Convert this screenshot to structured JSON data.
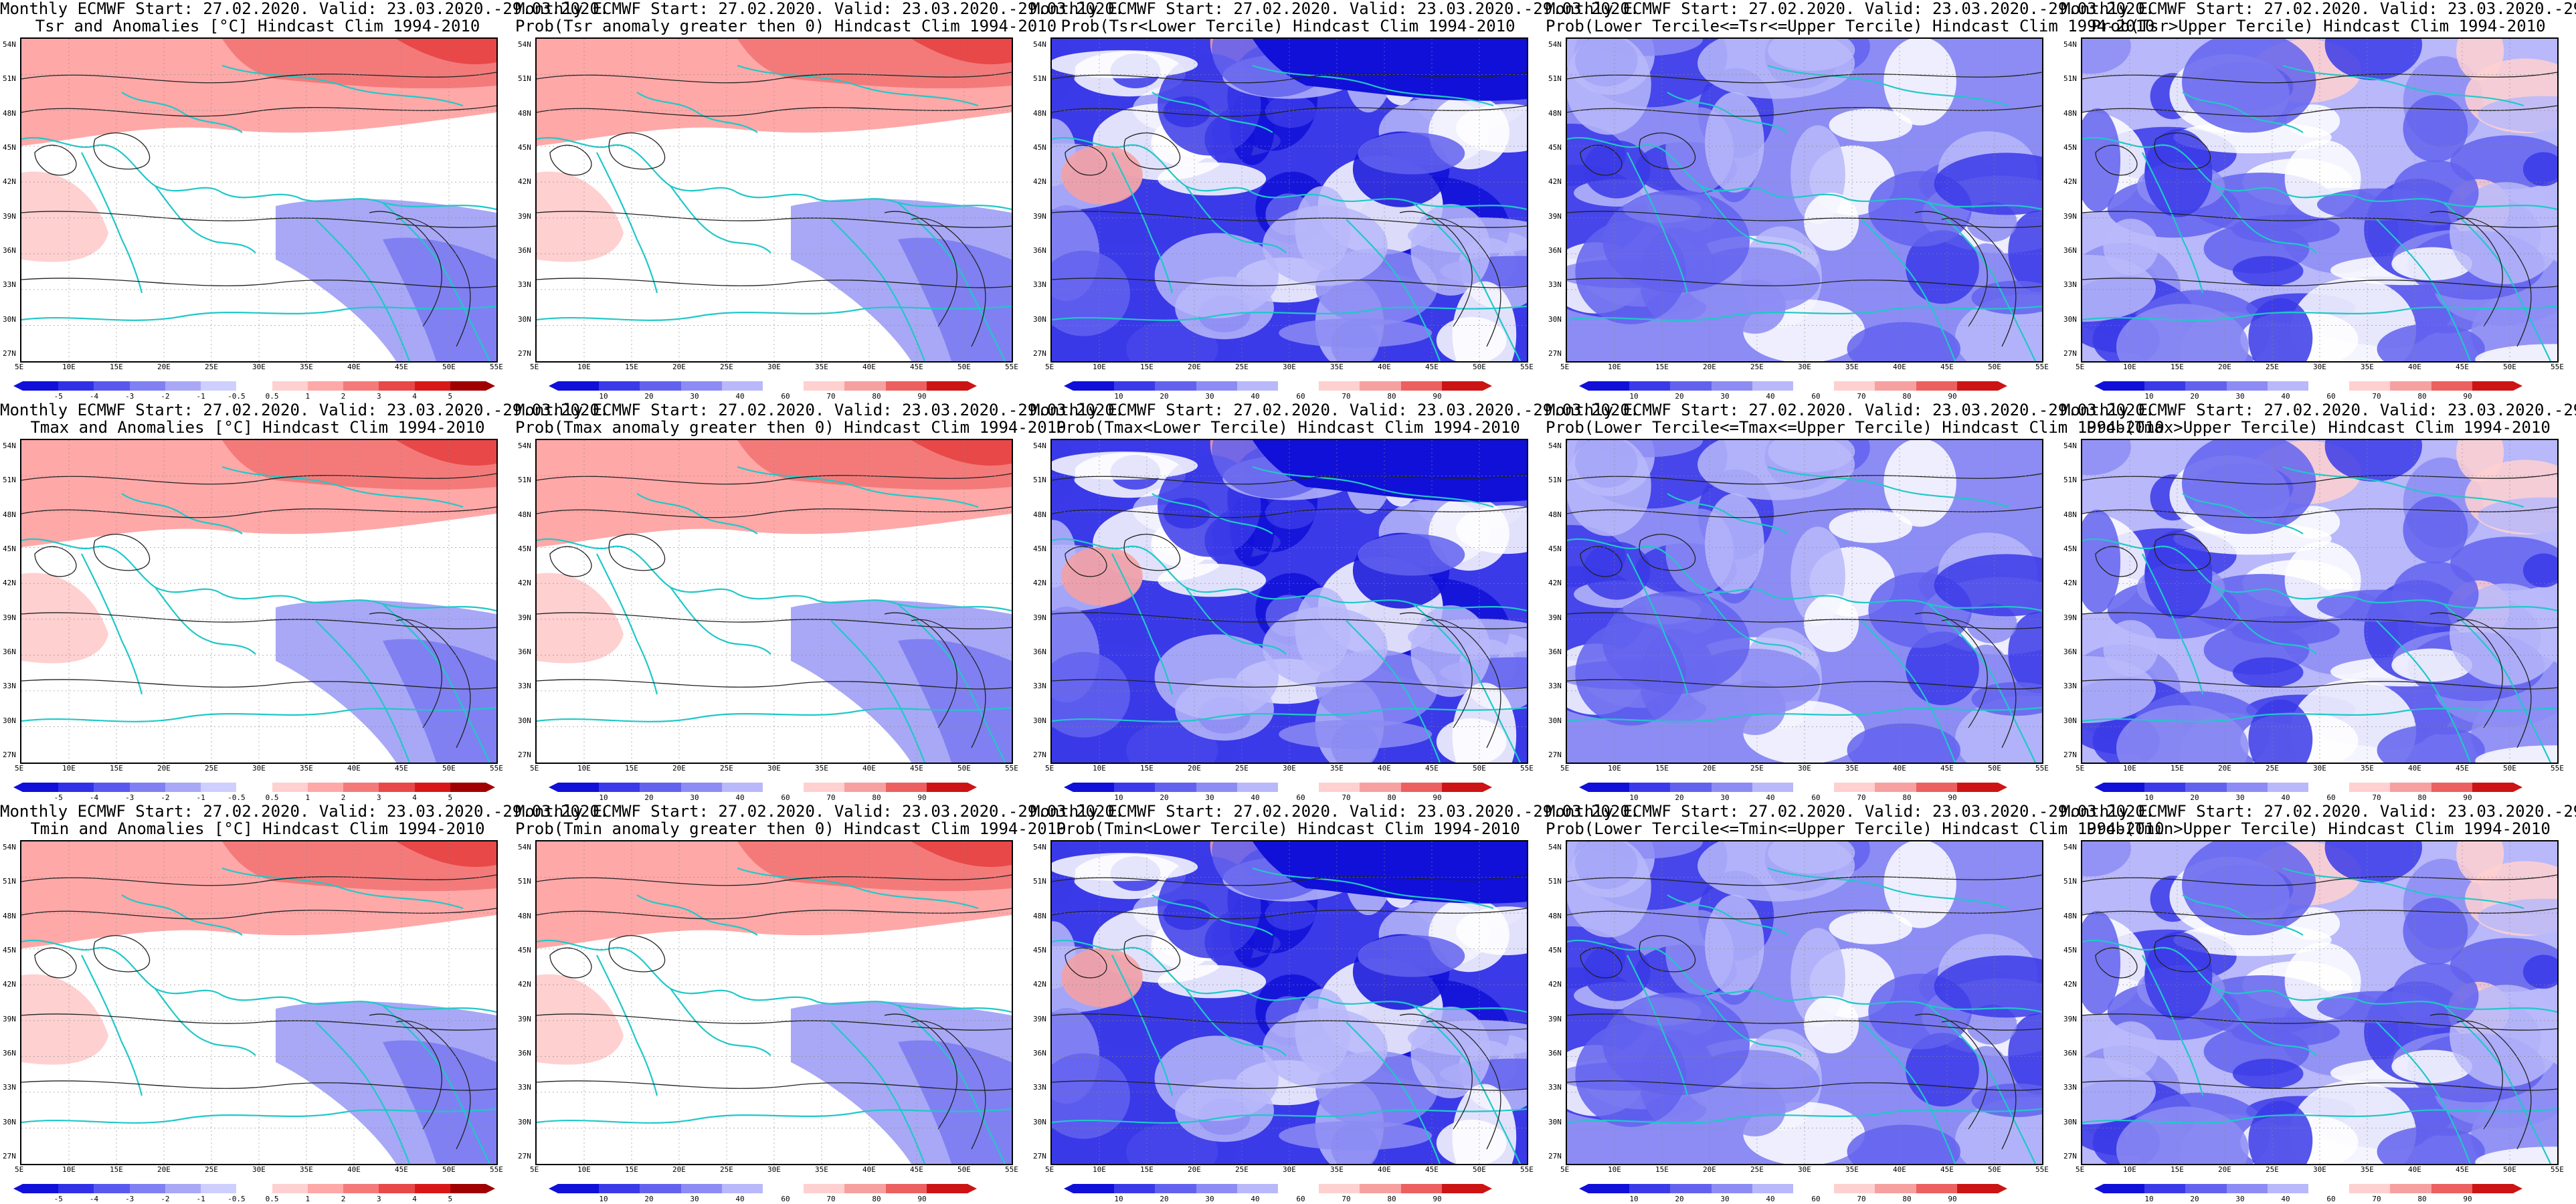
{
  "common": {
    "title_line1": "Monthly ECMWF Start: 27.02.2020. Valid: 23.03.2020.-29.03.2020.",
    "lat_labels": [
      "54N",
      "51N",
      "48N",
      "45N",
      "42N",
      "39N",
      "36N",
      "33N",
      "30N",
      "27N"
    ],
    "lon_labels": [
      "5E",
      "10E",
      "15E",
      "20E",
      "25E",
      "30E",
      "35E",
      "40E",
      "45E",
      "50E",
      "55E"
    ]
  },
  "anomaly_ticks": [
    "-5",
    "-4",
    "-3",
    "-2",
    "-1",
    "-0.5",
    "0.5",
    "1",
    "2",
    "3",
    "4",
    "5"
  ],
  "prob_ticks": [
    "10",
    "20",
    "30",
    "40",
    "60",
    "70",
    "80",
    "90"
  ],
  "colors": {
    "anom": [
      "#1010d8",
      "#3030e6",
      "#5858ee",
      "#8080f2",
      "#a8a8f6",
      "#ceceff",
      "#ffffff",
      "#ffd0d0",
      "#ffa8a8",
      "#f47a7a",
      "#e84848",
      "#d81818",
      "#a00000"
    ],
    "prob": [
      "#1010d8",
      "#3a3ae8",
      "#6262ee",
      "#8c8cf4",
      "#b8b8fa",
      "#ffffff",
      "#ffd0d0",
      "#f7a0a0",
      "#ec6060",
      "#cc1414"
    ],
    "coast": "#20c8c8",
    "contour": "#222222"
  },
  "panels": [
    {
      "row": 0,
      "col": 0,
      "title2": "Tsr and Anomalies [°C] Hindcast Clim 1994-2010",
      "bar": "anom",
      "field": "warm"
    },
    {
      "row": 0,
      "col": 1,
      "title2": "Prob(Tsr anomaly greater then 0) Hindcast Clim 1994-2010",
      "bar": "prob",
      "field": "warm"
    },
    {
      "row": 0,
      "col": 2,
      "title2": "Prob(Tsr<Lower Tercile) Hindcast Clim 1994-2010",
      "bar": "prob",
      "field": "cold"
    },
    {
      "row": 0,
      "col": 3,
      "title2": "Prob(Lower Tercile<=Tsr<=Upper Tercile) Hindcast Clim 1994-2010",
      "bar": "prob",
      "field": "mid"
    },
    {
      "row": 0,
      "col": 4,
      "title2": "Prob(Tsr>Upper Tercile) Hindcast Clim 1994-2010",
      "bar": "prob",
      "field": "upper"
    },
    {
      "row": 1,
      "col": 0,
      "title2": "Tmax and Anomalies [°C] Hindcast Clim 1994-2010",
      "bar": "anom",
      "field": "warm"
    },
    {
      "row": 1,
      "col": 1,
      "title2": "Prob(Tmax anomaly greater then 0) Hindcast Clim 1994-2010",
      "bar": "prob",
      "field": "warm"
    },
    {
      "row": 1,
      "col": 2,
      "title2": "Prob(Tmax<Lower Tercile) Hindcast Clim 1994-2010",
      "bar": "prob",
      "field": "cold"
    },
    {
      "row": 1,
      "col": 3,
      "title2": "Prob(Lower Tercile<=Tmax<=Upper Tercile) Hindcast Clim 1994-2010",
      "bar": "prob",
      "field": "mid"
    },
    {
      "row": 1,
      "col": 4,
      "title2": "Prob(Tmax>Upper Tercile) Hindcast Clim 1994-2010",
      "bar": "prob",
      "field": "upper"
    },
    {
      "row": 2,
      "col": 0,
      "title2": "Tmin and Anomalies [°C] Hindcast Clim 1994-2010",
      "bar": "anom",
      "field": "warm"
    },
    {
      "row": 2,
      "col": 1,
      "title2": "Prob(Tmin anomaly greater then 0) Hindcast Clim 1994-2010",
      "bar": "prob",
      "field": "warm"
    },
    {
      "row": 2,
      "col": 2,
      "title2": "Prob(Tmin<Lower Tercile) Hindcast Clim 1994-2010",
      "bar": "prob",
      "field": "cold"
    },
    {
      "row": 2,
      "col": 3,
      "title2": "Prob(Lower Tercile<=Tmin<=Upper Tercile) Hindcast Clim 1994-2010",
      "bar": "prob",
      "field": "mid"
    },
    {
      "row": 2,
      "col": 4,
      "title2": "Prob(Tmin>Upper Tercile) Hindcast Clim 1994-2010",
      "bar": "prob",
      "field": "upper"
    }
  ]
}
